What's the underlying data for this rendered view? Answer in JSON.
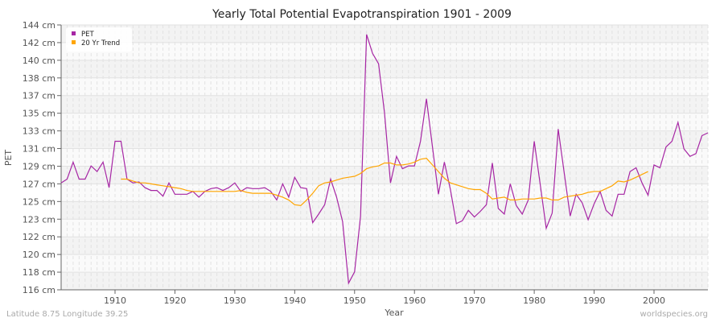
{
  "chart_data": {
    "type": "line",
    "title": "Yearly Total Potential Evapotranspiration 1901 - 2009",
    "xlabel": "Year",
    "ylabel": "PET",
    "xlim": [
      1901,
      2009
    ],
    "ylim": [
      116,
      144
    ],
    "y_tick_labels": [
      "116 cm",
      "118 cm",
      "120 cm",
      "122 cm",
      "123 cm",
      "125 cm",
      "127 cm",
      "129 cm",
      "131 cm",
      "133 cm",
      "135 cm",
      "137 cm",
      "138 cm",
      "140 cm",
      "142 cm",
      "144 cm"
    ],
    "x_ticks": [
      1910,
      1920,
      1930,
      1940,
      1950,
      1960,
      1970,
      1980,
      1990,
      2000
    ],
    "grid": true,
    "legend_placement": "top-left",
    "series": [
      {
        "name": "PET",
        "color": "#a626a4",
        "start_year": 1901,
        "values": [
          127.3,
          127.7,
          129.5,
          127.7,
          127.7,
          129.1,
          128.5,
          129.5,
          126.8,
          131.7,
          131.7,
          127.7,
          127.3,
          127.4,
          126.8,
          126.5,
          126.5,
          125.9,
          127.3,
          126.1,
          126.1,
          126.1,
          126.4,
          125.8,
          126.4,
          126.7,
          126.8,
          126.5,
          126.8,
          127.3,
          126.4,
          126.8,
          126.7,
          126.7,
          126.8,
          126.4,
          125.5,
          127.2,
          125.8,
          127.9,
          126.8,
          126.7,
          123.1,
          124.0,
          125.0,
          127.7,
          125.8,
          123.2,
          116.7,
          117.9,
          123.8,
          143.0,
          141.0,
          139.9,
          134.7,
          127.3,
          130.1,
          128.8,
          129.1,
          129.1,
          131.7,
          136.2,
          131.1,
          126.1,
          129.5,
          126.6,
          123.0,
          123.3,
          124.4,
          123.7,
          124.3,
          125.0,
          129.4,
          124.6,
          124.0,
          127.2,
          124.9,
          124.0,
          125.5,
          131.7,
          127.1,
          122.5,
          124.1,
          133.0,
          128.4,
          123.8,
          126.1,
          125.2,
          123.4,
          125.1,
          126.4,
          124.4,
          123.8,
          126.1,
          126.1,
          128.5,
          128.9,
          127.3,
          126.0,
          129.2,
          128.9,
          131.1,
          131.7,
          133.7,
          130.9,
          130.1,
          130.4,
          132.3,
          132.6
        ]
      },
      {
        "name": "20 Yr Trend",
        "color": "#ffa500",
        "start_year": 1911,
        "values": [
          127.7,
          127.7,
          127.5,
          127.3,
          127.3,
          127.2,
          127.1,
          127.0,
          126.9,
          126.8,
          126.7,
          126.5,
          126.4,
          126.4,
          126.4,
          126.4,
          126.4,
          126.4,
          126.4,
          126.4,
          126.5,
          126.3,
          126.2,
          126.2,
          126.2,
          126.2,
          126.0,
          125.8,
          125.5,
          125.0,
          124.9,
          125.5,
          126.2,
          127.0,
          127.3,
          127.4,
          127.6,
          127.8,
          127.9,
          128.0,
          128.3,
          128.8,
          129.0,
          129.1,
          129.4,
          129.4,
          129.2,
          129.2,
          129.3,
          129.5,
          129.8,
          129.9,
          129.2,
          128.5,
          127.8,
          127.3,
          127.1,
          126.9,
          126.7,
          126.6,
          126.6,
          126.2,
          125.6,
          125.7,
          125.8,
          125.5,
          125.5,
          125.6,
          125.6,
          125.6,
          125.7,
          125.7,
          125.5,
          125.5,
          125.8,
          125.9,
          126.0,
          126.1,
          126.3,
          126.4,
          126.4,
          126.7,
          127.0,
          127.5,
          127.4,
          127.6,
          127.9,
          128.2,
          128.5
        ]
      }
    ]
  },
  "footer": {
    "left": "Latitude 8.75 Longitude 39.25",
    "right": "worldspecies.org"
  }
}
